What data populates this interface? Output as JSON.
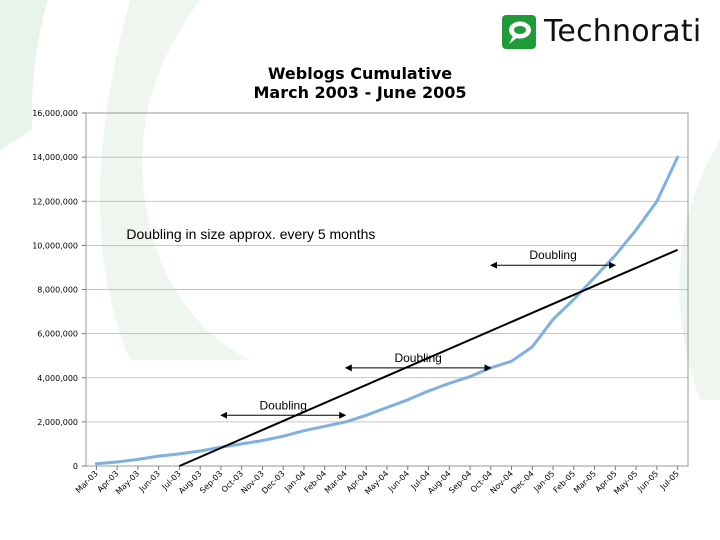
{
  "brand": {
    "name": "Technorati",
    "color": "#1f9b3a"
  },
  "chart_data": {
    "type": "line",
    "title_line1": "Weblogs Cumulative",
    "title_line2": "March 2003 - June 2005",
    "xlabel": "",
    "ylabel": "",
    "categories": [
      "Mar-03",
      "Apr-03",
      "May-03",
      "Jun-03",
      "Jul-03",
      "Aug-03",
      "Sep-03",
      "Oct-03",
      "Nov-03",
      "Dec-03",
      "Jan-04",
      "Feb-04",
      "Mar-04",
      "Apr-04",
      "May-04",
      "Jun-04",
      "Jul-04",
      "Aug-04",
      "Sep-04",
      "Oct-04",
      "Nov-04",
      "Dec-04",
      "Jan-05",
      "Feb-05",
      "Mar-05",
      "Apr-05",
      "May-05",
      "Jun-05",
      "Jul-05"
    ],
    "ylim": [
      0,
      16000000
    ],
    "yticks": [
      0,
      2000000,
      4000000,
      6000000,
      8000000,
      10000000,
      12000000,
      14000000,
      16000000
    ],
    "ytick_labels": [
      "0",
      "2,000,000",
      "4,000,000",
      "6,000,000",
      "8,000,000",
      "10,000,000",
      "12,000,000",
      "14,000,000",
      "16,000,000"
    ],
    "grid": true,
    "series": [
      {
        "color": "#7fb0e0",
        "values": [
          100000,
          180000,
          300000,
          450000,
          550000,
          680000,
          850000,
          1000000,
          1150000,
          1350000,
          1600000,
          1800000,
          2000000,
          2300000,
          2650000,
          3000000,
          3400000,
          3750000,
          4050000,
          4450000,
          4750000,
          5400000,
          6650000,
          7550000,
          8550000,
          9550000,
          10700000,
          12000000,
          14000000
        ]
      }
    ],
    "trend_line": {
      "color": "#000000",
      "start": {
        "x": "Jul-03",
        "y": 0
      },
      "end": {
        "x": "Jul-05",
        "y": 9800000
      }
    },
    "annotations": [
      {
        "text": "Doubling in size approx. every 5 months",
        "x": "Jul-03",
        "y": 10200000
      },
      {
        "text": "Doubling",
        "from": "Sep-03",
        "to": "Mar-04",
        "y": 2300000
      },
      {
        "text": "Doubling",
        "from": "Mar-04",
        "to": "Oct-04",
        "y": 4450000
      },
      {
        "text": "Doubling",
        "from": "Oct-04",
        "to": "Apr-05",
        "y": 9100000
      }
    ]
  }
}
